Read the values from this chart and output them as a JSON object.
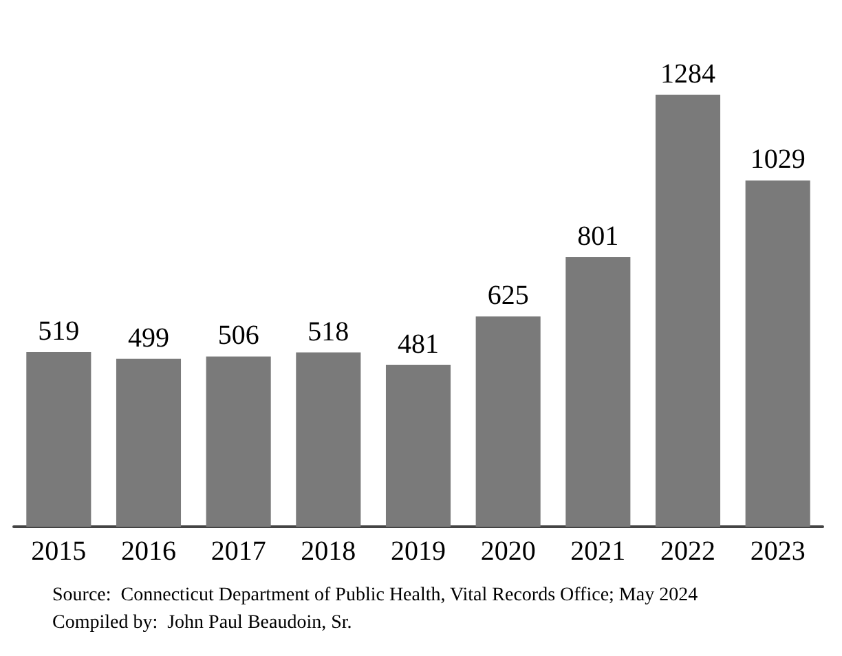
{
  "chart_data": {
    "type": "bar",
    "categories": [
      "2015",
      "2016",
      "2017",
      "2018",
      "2019",
      "2020",
      "2021",
      "2022",
      "2023"
    ],
    "values": [
      519,
      499,
      506,
      518,
      481,
      625,
      801,
      1284,
      1029
    ],
    "color": "#7a7a7a",
    "data_labels": true,
    "tick_labels": "x",
    "annotations": [
      "Source:  Connecticut Department of Public Health, Vital Records Office; May 2024",
      "Compiled by:  John Paul Beaudoin, Sr."
    ]
  }
}
